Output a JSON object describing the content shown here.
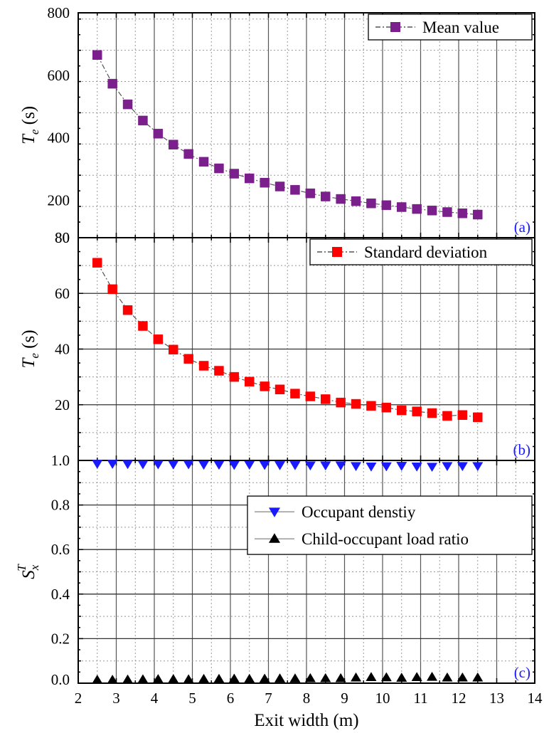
{
  "chart_data": [
    {
      "type": "scatter",
      "panel_label": "(a)",
      "ylabel": "T_e (s)",
      "ylabel_main": "T",
      "ylabel_sub": "e",
      "ylabel_unit": " (s)",
      "ylim": [
        80,
        800
      ],
      "yticks": [
        200,
        400,
        600,
        800
      ],
      "ytick_labels": [
        "200",
        "400",
        "600",
        "800"
      ],
      "legend_position": "top-right",
      "grid": true,
      "series": [
        {
          "name": "Mean value",
          "marker": "square",
          "color": "#7b1f8c",
          "x": [
            2.5,
            2.9,
            3.3,
            3.7,
            4.1,
            4.5,
            4.9,
            5.3,
            5.7,
            6.1,
            6.5,
            6.9,
            7.3,
            7.7,
            8.1,
            8.5,
            8.9,
            9.3,
            9.7,
            10.1,
            10.5,
            10.9,
            11.3,
            11.7,
            12.1,
            12.5
          ],
          "y": [
            665,
            573,
            507,
            455,
            413,
            378,
            348,
            323,
            302,
            285,
            270,
            256,
            244,
            233,
            222,
            212,
            204,
            197,
            190,
            184,
            178,
            172,
            167,
            162,
            158,
            154
          ]
        }
      ]
    },
    {
      "type": "scatter",
      "panel_label": "(b)",
      "ylabel": "T_e (s)",
      "ylabel_main": "T",
      "ylabel_sub": "e",
      "ylabel_unit": " (s)",
      "ylim": [
        0,
        80
      ],
      "yticks": [
        20,
        40,
        60,
        80
      ],
      "ytick_labels": [
        "20",
        "40",
        "60",
        "80"
      ],
      "legend_position": "top-right",
      "grid": true,
      "series": [
        {
          "name": "Standard deviation",
          "marker": "square",
          "color": "#ff0000",
          "x": [
            2.5,
            2.9,
            3.3,
            3.7,
            4.1,
            4.5,
            4.9,
            5.3,
            5.7,
            6.1,
            6.5,
            6.9,
            7.3,
            7.7,
            8.1,
            8.5,
            8.9,
            9.3,
            9.7,
            10.1,
            10.5,
            10.9,
            11.3,
            11.7,
            12.1,
            12.5
          ],
          "y": [
            71,
            61.5,
            54,
            48.3,
            43.5,
            39.8,
            36.5,
            34,
            32.2,
            30,
            28.3,
            26.6,
            25.5,
            24,
            23,
            22,
            20.8,
            20.3,
            19.6,
            19,
            18,
            17.6,
            17,
            16,
            16.3,
            15.5
          ]
        }
      ]
    },
    {
      "type": "scatter",
      "panel_label": "(c)",
      "ylabel": "S_x^T",
      "ylabel_main": "S",
      "ylabel_sub": "x",
      "ylabel_sup": "T",
      "xlabel": "Exit width (m)",
      "xlim": [
        2,
        14
      ],
      "xticks": [
        2,
        3,
        4,
        5,
        6,
        7,
        8,
        9,
        10,
        11,
        12,
        13,
        14
      ],
      "xtick_labels": [
        "2",
        "3",
        "4",
        "5",
        "6",
        "7",
        "8",
        "9",
        "10",
        "11",
        "12",
        "13",
        "14"
      ],
      "ylim": [
        0,
        1
      ],
      "yticks": [
        0,
        0.2,
        0.4,
        0.6,
        0.8,
        1.0
      ],
      "ytick_labels": [
        "0.0",
        "0.2",
        "0.4",
        "0.6",
        "0.8",
        "1.0"
      ],
      "legend_position": "upper-right",
      "grid": true,
      "series": [
        {
          "name": "Occupant denstiy",
          "marker": "triangle-down",
          "color": "#1a1aff",
          "x": [
            2.5,
            2.9,
            3.3,
            3.7,
            4.1,
            4.5,
            4.9,
            5.3,
            5.7,
            6.1,
            6.5,
            6.9,
            7.3,
            7.7,
            8.1,
            8.5,
            8.9,
            9.3,
            9.7,
            10.1,
            10.5,
            10.9,
            11.3,
            11.7,
            12.1,
            12.5
          ],
          "y": [
            0.985,
            0.985,
            0.984,
            0.983,
            0.983,
            0.982,
            0.983,
            0.981,
            0.981,
            0.98,
            0.981,
            0.98,
            0.979,
            0.979,
            0.978,
            0.978,
            0.978,
            0.975,
            0.973,
            0.974,
            0.976,
            0.973,
            0.972,
            0.975,
            0.975,
            0.975
          ]
        },
        {
          "name": "Child-occupant load ratio",
          "marker": "triangle-up",
          "color": "#000000",
          "x": [
            2.5,
            2.9,
            3.3,
            3.7,
            4.1,
            4.5,
            4.9,
            5.3,
            5.7,
            6.1,
            6.5,
            6.9,
            7.3,
            7.7,
            8.1,
            8.5,
            8.9,
            9.3,
            9.7,
            10.1,
            10.5,
            10.9,
            11.3,
            11.7,
            12.1,
            12.5
          ],
          "y": [
            0.015,
            0.015,
            0.016,
            0.017,
            0.018,
            0.018,
            0.017,
            0.019,
            0.019,
            0.02,
            0.019,
            0.02,
            0.021,
            0.021,
            0.022,
            0.022,
            0.022,
            0.025,
            0.027,
            0.026,
            0.024,
            0.027,
            0.028,
            0.025,
            0.025,
            0.025
          ]
        }
      ]
    }
  ]
}
